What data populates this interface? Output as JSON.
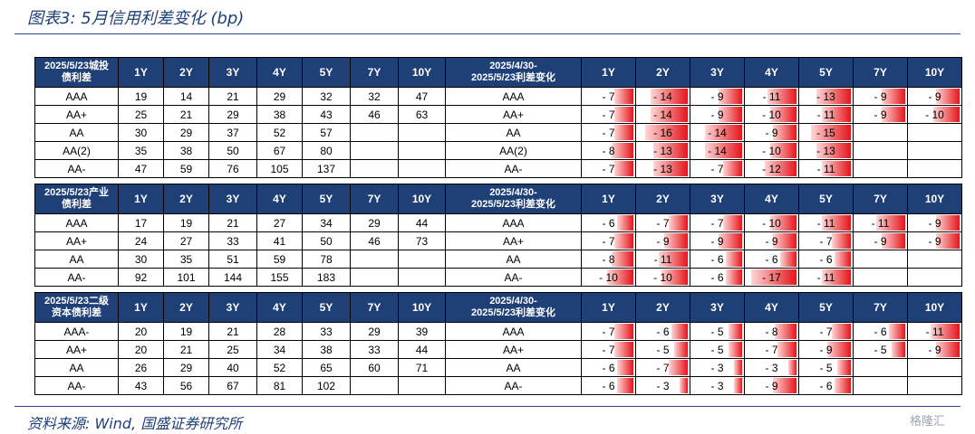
{
  "title": "图表3: 5月信用利差变化 (bp)",
  "source": "资料来源: Wind, 国盛证券研究所",
  "watermark": "格隆汇",
  "accent_color": "#1f3f77",
  "bar_color": "#e4151b",
  "chart_data": [
    {
      "type": "table",
      "level_header": [
        "2025/5/23城投",
        "债利差"
      ],
      "change_header": [
        "2025/4/30-",
        "2025/5/23利差变化"
      ],
      "tenors": [
        "1Y",
        "2Y",
        "3Y",
        "4Y",
        "5Y",
        "7Y",
        "10Y"
      ],
      "rows": [
        {
          "rating": "AAA",
          "rating_right": "AAA",
          "levels": [
            19,
            14,
            21,
            29,
            32,
            32,
            47
          ],
          "changes": [
            -7,
            -14,
            -9,
            -11,
            -13,
            -9,
            -9
          ]
        },
        {
          "rating": "AA+",
          "rating_right": "AA+",
          "levels": [
            25,
            21,
            29,
            38,
            43,
            46,
            63
          ],
          "changes": [
            -7,
            -14,
            -9,
            -10,
            -11,
            -9,
            -10
          ]
        },
        {
          "rating": "AA",
          "rating_right": "AA",
          "levels": [
            30,
            29,
            37,
            52,
            57,
            null,
            null
          ],
          "changes": [
            -7,
            -16,
            -14,
            -9,
            -15,
            null,
            null
          ]
        },
        {
          "rating": "AA(2)",
          "rating_right": "AA(2)",
          "levels": [
            35,
            38,
            50,
            67,
            80,
            null,
            null
          ],
          "changes": [
            -8,
            -13,
            -14,
            -10,
            -13,
            null,
            null
          ]
        },
        {
          "rating": "AA-",
          "rating_right": "AA-",
          "levels": [
            47,
            59,
            76,
            105,
            137,
            null,
            null
          ],
          "changes": [
            -7,
            -13,
            -7,
            -12,
            -11,
            null,
            null
          ]
        }
      ]
    },
    {
      "type": "table",
      "level_header": [
        "2025/5/23产业",
        "债利差"
      ],
      "change_header": [
        "2025/4/30-",
        "2025/5/23利差变化"
      ],
      "tenors": [
        "1Y",
        "2Y",
        "3Y",
        "4Y",
        "5Y",
        "7Y",
        "10Y"
      ],
      "rows": [
        {
          "rating": "AAA",
          "rating_right": "AAA",
          "levels": [
            17,
            19,
            21,
            27,
            34,
            29,
            44
          ],
          "changes": [
            -6,
            -7,
            -7,
            -10,
            -11,
            -11,
            -9
          ]
        },
        {
          "rating": "AA+",
          "rating_right": "AA+",
          "levels": [
            24,
            27,
            33,
            41,
            50,
            46,
            73
          ],
          "changes": [
            -7,
            -9,
            -9,
            -9,
            -7,
            -9,
            -9
          ]
        },
        {
          "rating": "AA",
          "rating_right": "AA",
          "levels": [
            30,
            35,
            51,
            59,
            78,
            null,
            null
          ],
          "changes": [
            -8,
            -11,
            -6,
            -6,
            -6,
            null,
            null
          ]
        },
        {
          "rating": "AA-",
          "rating_right": "AA-",
          "levels": [
            92,
            101,
            144,
            155,
            183,
            null,
            null
          ],
          "changes": [
            -10,
            -10,
            -6,
            -17,
            -11,
            null,
            null
          ]
        }
      ]
    },
    {
      "type": "table",
      "level_header": [
        "2025/5/23二级",
        "资本债利差"
      ],
      "change_header": [
        "2025/4/30-",
        "2025/5/23利差变化"
      ],
      "tenors": [
        "1Y",
        "2Y",
        "3Y",
        "4Y",
        "5Y",
        "7Y",
        "10Y"
      ],
      "rows": [
        {
          "rating": "AAA-",
          "rating_right": "AAA",
          "levels": [
            20,
            19,
            21,
            28,
            33,
            29,
            39
          ],
          "changes": [
            -7,
            -6,
            -5,
            -8,
            -7,
            -6,
            -11
          ]
        },
        {
          "rating": "AA+",
          "rating_right": "AA+",
          "levels": [
            20,
            21,
            25,
            34,
            38,
            33,
            44
          ],
          "changes": [
            -7,
            -5,
            -5,
            -7,
            -9,
            -5,
            -9
          ]
        },
        {
          "rating": "AA",
          "rating_right": "AA",
          "levels": [
            26,
            29,
            40,
            52,
            65,
            60,
            71
          ],
          "changes": [
            -6,
            -7,
            -3,
            -3,
            -5,
            null,
            null
          ]
        },
        {
          "rating": "AA-",
          "rating_right": "AA-",
          "levels": [
            43,
            56,
            67,
            81,
            102,
            null,
            null
          ],
          "changes": [
            -6,
            -3,
            -3,
            -9,
            -6,
            null,
            null
          ]
        }
      ]
    }
  ]
}
